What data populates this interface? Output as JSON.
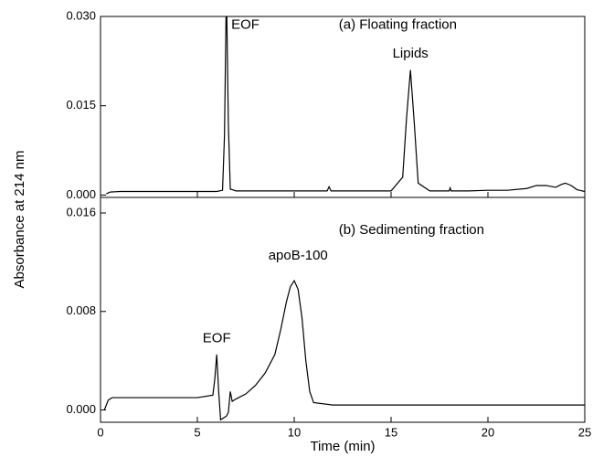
{
  "chart_data": [
    {
      "type": "line",
      "ylabel": "Absorbance at 214 nm",
      "annotations": [
        "EOF",
        "(a) Floating fraction",
        "Lipids"
      ],
      "xlim": [
        0,
        25
      ],
      "ylim": [
        -0.0004,
        0.03
      ],
      "yticks": [
        {
          "value": 0,
          "label": "0.000"
        },
        {
          "value": 0.015,
          "label": "0.015"
        },
        {
          "value": 0.03,
          "label": "0.030"
        }
      ],
      "series": [
        {
          "color": "#000000",
          "x": [
            0.3,
            0.5,
            1,
            2,
            3,
            4,
            5,
            6,
            6.3,
            6.4,
            6.5,
            6.6,
            6.7,
            7,
            8,
            9,
            10,
            11,
            11.7,
            11.8,
            11.9,
            12,
            13,
            14,
            15,
            15.6,
            15.8,
            16.0,
            16.2,
            16.4,
            17,
            18,
            18.05,
            18.1,
            19,
            20,
            21,
            22,
            22.5,
            23,
            23.5,
            23.8,
            24,
            24.3,
            24.6,
            25
          ],
          "values": [
            0.0002,
            0.0005,
            0.0006,
            0.0006,
            0.0006,
            0.0006,
            0.0006,
            0.0006,
            0.0008,
            0.01,
            0.035,
            0.012,
            0.001,
            0.0007,
            0.0007,
            0.0007,
            0.0007,
            0.0007,
            0.0007,
            0.0014,
            0.0007,
            0.0007,
            0.0007,
            0.0007,
            0.0007,
            0.003,
            0.013,
            0.021,
            0.012,
            0.002,
            0.0007,
            0.0007,
            0.0012,
            0.0007,
            0.0007,
            0.0008,
            0.0008,
            0.0011,
            0.0016,
            0.0016,
            0.0013,
            0.0018,
            0.002,
            0.0016,
            0.0009,
            0.0006
          ]
        }
      ]
    },
    {
      "type": "line",
      "xlabel": "Time (min)",
      "annotations": [
        "(b) Sedimenting fraction",
        "apoB-100",
        "EOF"
      ],
      "xlim": [
        0,
        25
      ],
      "xticks": [
        0,
        5,
        10,
        15,
        20,
        25
      ],
      "ylim": [
        -0.001,
        0.016
      ],
      "yticks": [
        {
          "value": 0,
          "label": "0.000"
        },
        {
          "value": 0.008,
          "label": "0.008"
        },
        {
          "value": 0.016,
          "label": "0.016"
        }
      ],
      "series": [
        {
          "color": "#000000",
          "x": [
            0.2,
            0.4,
            0.6,
            1,
            2,
            3,
            4,
            5,
            5.8,
            5.9,
            6.0,
            6.1,
            6.2,
            6.5,
            6.6,
            6.7,
            6.8,
            7,
            7.5,
            8,
            8.5,
            9,
            9.3,
            9.6,
            9.8,
            10.0,
            10.2,
            10.4,
            10.6,
            10.8,
            11,
            12,
            14,
            16,
            18,
            20,
            22,
            24,
            25
          ],
          "values": [
            0.0,
            0.0008,
            0.001,
            0.001,
            0.001,
            0.001,
            0.001,
            0.001,
            0.0012,
            0.0025,
            0.0045,
            0.0015,
            -0.0008,
            -0.0005,
            -0.0002,
            0.0015,
            0.0007,
            0.0009,
            0.0013,
            0.002,
            0.003,
            0.0045,
            0.0065,
            0.0088,
            0.01,
            0.0105,
            0.0098,
            0.0075,
            0.004,
            0.0015,
            0.0006,
            0.0004,
            0.0004,
            0.0004,
            0.0004,
            0.0004,
            0.0004,
            0.0004,
            0.0004
          ]
        }
      ]
    }
  ]
}
